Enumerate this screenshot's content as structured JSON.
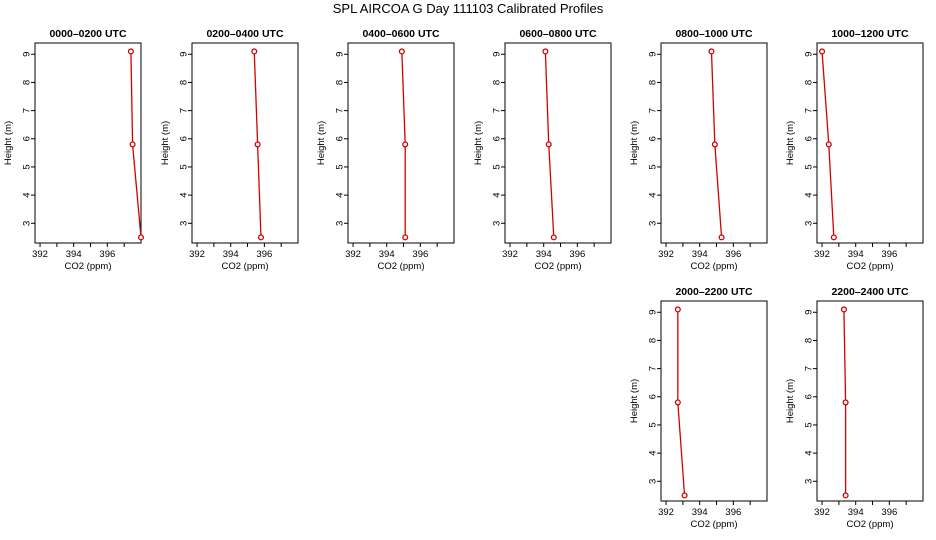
{
  "page_title": "SPL AIRCOA G  Day 111103  Calibrated Profiles",
  "chart_data": [
    {
      "type": "line",
      "title": "0000–0200 UTC",
      "xlabel": "CO2 (ppm)",
      "ylabel": "Height (m)",
      "xlim": [
        391.7,
        398.0
      ],
      "ylim": [
        2.3,
        9.4
      ],
      "xticks": [
        "392",
        "394",
        "396"
      ],
      "yticks": [
        "3",
        "4",
        "5",
        "6",
        "7",
        "8",
        "9"
      ],
      "series": [
        {
          "x": [
            397.4,
            397.5,
            398.0
          ],
          "y": [
            9.1,
            5.8,
            2.5
          ]
        }
      ]
    },
    {
      "type": "line",
      "title": "0200–0400 UTC",
      "xlabel": "CO2 (ppm)",
      "ylabel": "Height (m)",
      "xlim": [
        391.7,
        398.0
      ],
      "ylim": [
        2.3,
        9.4
      ],
      "xticks": [
        "392",
        "394",
        "396"
      ],
      "yticks": [
        "3",
        "4",
        "5",
        "6",
        "7",
        "8",
        "9"
      ],
      "series": [
        {
          "x": [
            395.4,
            395.6,
            395.8
          ],
          "y": [
            9.1,
            5.8,
            2.5
          ]
        }
      ]
    },
    {
      "type": "line",
      "title": "0400–0600 UTC",
      "xlabel": "CO2 (ppm)",
      "ylabel": "Height (m)",
      "xlim": [
        391.7,
        398.0
      ],
      "ylim": [
        2.3,
        9.4
      ],
      "xticks": [
        "392",
        "394",
        "396"
      ],
      "yticks": [
        "3",
        "4",
        "5",
        "6",
        "7",
        "8",
        "9"
      ],
      "series": [
        {
          "x": [
            394.9,
            395.1,
            395.1
          ],
          "y": [
            9.1,
            5.8,
            2.5
          ]
        }
      ]
    },
    {
      "type": "line",
      "title": "0600–0800 UTC",
      "xlabel": "CO2 (ppm)",
      "ylabel": "Height (m)",
      "xlim": [
        391.7,
        398.0
      ],
      "ylim": [
        2.3,
        9.4
      ],
      "xticks": [
        "392",
        "394",
        "396"
      ],
      "yticks": [
        "3",
        "4",
        "5",
        "6",
        "7",
        "8",
        "9"
      ],
      "series": [
        {
          "x": [
            394.1,
            394.3,
            394.6
          ],
          "y": [
            9.1,
            5.8,
            2.5
          ]
        }
      ]
    },
    {
      "type": "line",
      "title": "0800–1000 UTC",
      "xlabel": "CO2 (ppm)",
      "ylabel": "Height (m)",
      "xlim": [
        391.7,
        398.0
      ],
      "ylim": [
        2.3,
        9.4
      ],
      "xticks": [
        "392",
        "394",
        "396"
      ],
      "yticks": [
        "3",
        "4",
        "5",
        "6",
        "7",
        "8",
        "9"
      ],
      "series": [
        {
          "x": [
            394.7,
            394.9,
            395.3
          ],
          "y": [
            9.1,
            5.8,
            2.5
          ]
        }
      ]
    },
    {
      "type": "line",
      "title": "1000–1200 UTC",
      "xlabel": "CO2 (ppm)",
      "ylabel": "Height (m)",
      "xlim": [
        391.7,
        398.0
      ],
      "ylim": [
        2.3,
        9.4
      ],
      "xticks": [
        "392",
        "394",
        "396"
      ],
      "yticks": [
        "3",
        "4",
        "5",
        "6",
        "7",
        "8",
        "9"
      ],
      "series": [
        {
          "x": [
            392.0,
            392.4,
            392.7
          ],
          "y": [
            9.1,
            5.8,
            2.5
          ]
        }
      ]
    },
    {
      "type": "line",
      "title": "2000–2200 UTC",
      "xlabel": "CO2 (ppm)",
      "ylabel": "Height (m)",
      "xlim": [
        391.7,
        398.0
      ],
      "ylim": [
        2.3,
        9.4
      ],
      "xticks": [
        "392",
        "394",
        "396"
      ],
      "yticks": [
        "3",
        "4",
        "5",
        "6",
        "7",
        "8",
        "9"
      ],
      "series": [
        {
          "x": [
            392.7,
            392.7,
            393.1
          ],
          "y": [
            9.1,
            5.8,
            2.5
          ]
        }
      ]
    },
    {
      "type": "line",
      "title": "2200–2400 UTC",
      "xlabel": "CO2 (ppm)",
      "ylabel": "Height (m)",
      "xlim": [
        391.7,
        398.0
      ],
      "ylim": [
        2.3,
        9.4
      ],
      "xticks": [
        "392",
        "394",
        "396"
      ],
      "yticks": [
        "3",
        "4",
        "5",
        "6",
        "7",
        "8",
        "9"
      ],
      "series": [
        {
          "x": [
            393.3,
            393.4,
            393.4
          ],
          "y": [
            9.1,
            5.8,
            2.5
          ]
        }
      ]
    }
  ],
  "colors": {
    "series": "#d40000",
    "axis": "#000000"
  }
}
